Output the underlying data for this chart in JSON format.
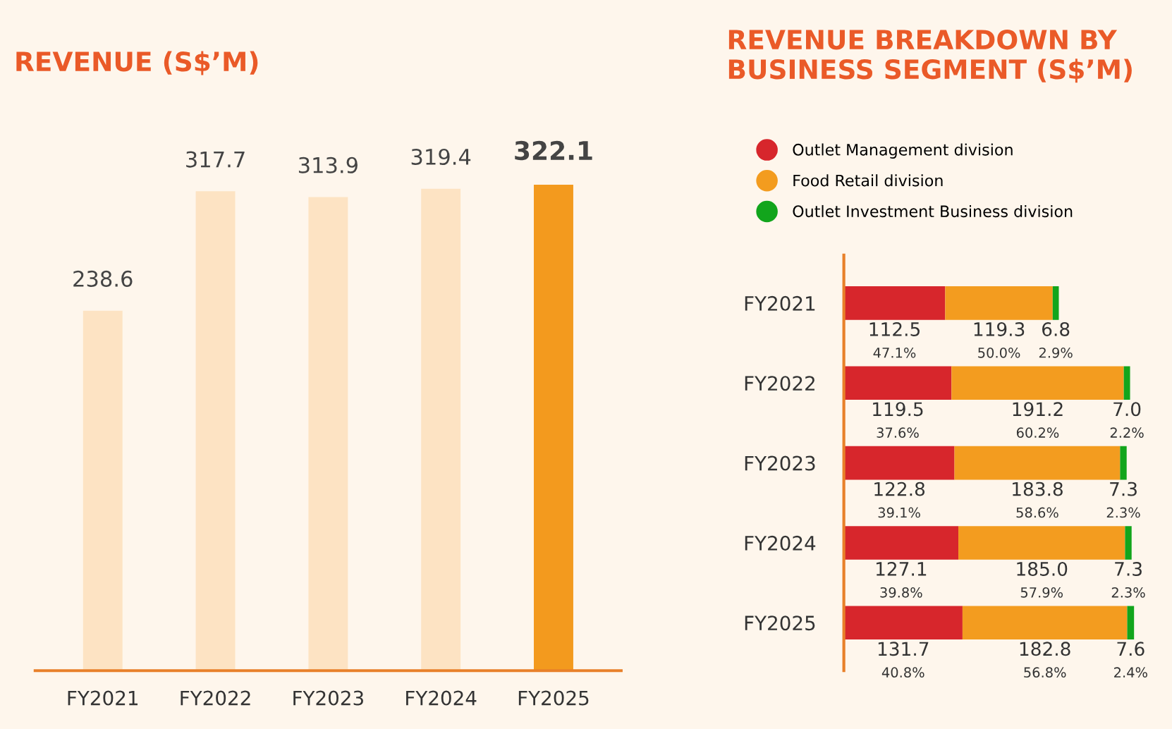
{
  "chart_data": [
    {
      "type": "bar",
      "title": "REVENUE (S$’M)",
      "categories": [
        "FY2021",
        "FY2022",
        "FY2023",
        "FY2024",
        "FY2025"
      ],
      "values": [
        238.6,
        317.7,
        313.9,
        319.4,
        322.1
      ],
      "colors": [
        "#fde3c3",
        "#fde3c3",
        "#fde3c3",
        "#fde3c3",
        "#f39a1e"
      ],
      "data_labels": true
    },
    {
      "type": "bar",
      "orientation": "horizontal",
      "stacked": true,
      "title": "REVENUE BREAKDOWN BY BUSINESS SEGMENT (S$’M)",
      "categories": [
        "FY2021",
        "FY2022",
        "FY2023",
        "FY2024",
        "FY2025"
      ],
      "legend": "top",
      "series": [
        {
          "name": "Outlet Management division",
          "color": "#d7262c",
          "values": [
            112.5,
            119.5,
            122.8,
            127.1,
            131.7
          ],
          "value_labels": [
            "112.5",
            "119.5",
            "122.8",
            "127.1",
            "131.7"
          ]
        },
        {
          "name": "Food Retail division",
          "color": "#f39c1f",
          "values": [
            119.3,
            191.2,
            183.8,
            185.0,
            182.8
          ],
          "value_labels": [
            "119.3",
            "191.2",
            "183.8",
            "185.0",
            "182.8"
          ]
        },
        {
          "name": "Outlet Investment Business division",
          "color": "#12a51c",
          "values": [
            6.8,
            7.0,
            7.3,
            7.3,
            7.6
          ],
          "value_labels": [
            "6.8",
            "7.0",
            "7.3",
            "7.3",
            "7.6"
          ]
        }
      ],
      "annotations": [
        "47.1%",
        "50.0%",
        "2.9%",
        "37.6%",
        "60.2%",
        "2.2%",
        "39.1%",
        "58.6%",
        "2.3%",
        "39.8%",
        "57.9%",
        "2.3%",
        "40.8%",
        "56.8%",
        "2.4%"
      ]
    }
  ]
}
